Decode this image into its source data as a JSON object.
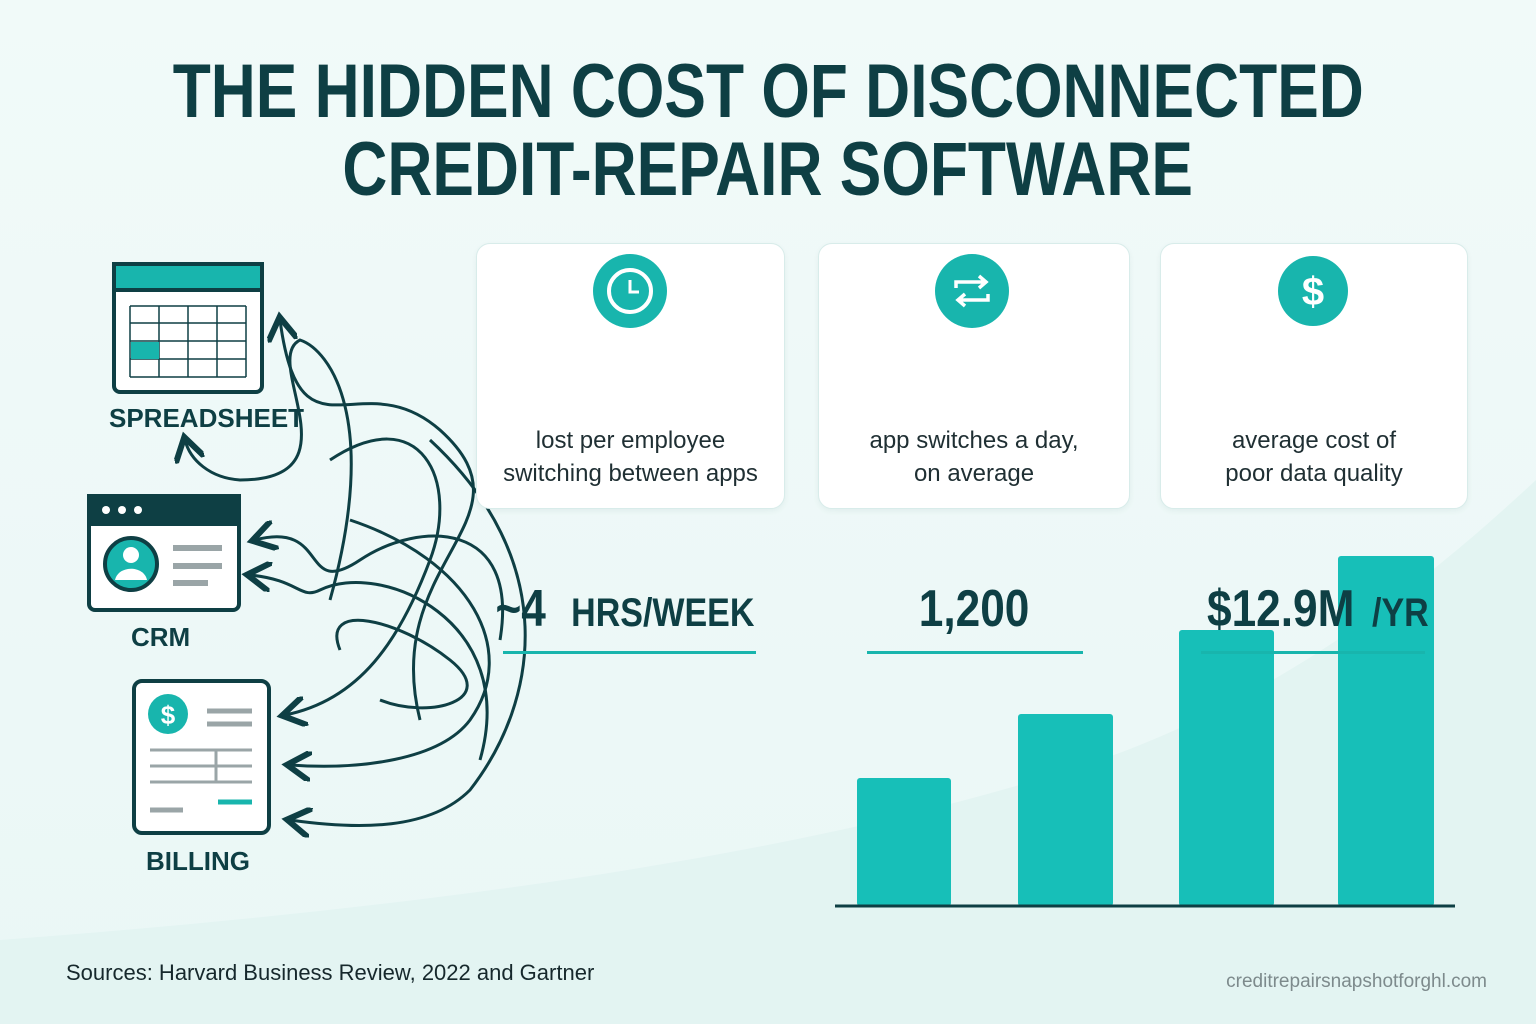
{
  "header": {
    "title_lines": [
      "THE HIDDEN COST OF DISCONNECTED",
      "CREDIT-REPAIR SOFTWARE"
    ]
  },
  "apps": [
    {
      "label": "SPREADSHEET"
    },
    {
      "label": "CRM"
    },
    {
      "label": "BILLING"
    }
  ],
  "stats": [
    {
      "value": "~4",
      "unit": "HRS/WEEK",
      "description_lines": [
        "lost per employee",
        "switching between apps"
      ]
    },
    {
      "value": "1,200",
      "description_lines": [
        "app switches a day,",
        "on average"
      ]
    },
    {
      "value": "$12.9M",
      "unit": "/YR",
      "description_lines": [
        "average cost of",
        "poor data quality"
      ]
    }
  ],
  "footer": {
    "sources": "Sources: Harvard Business Review, 2022 and Gartner",
    "website": "creditrepairsnapshotforghl.com"
  }
}
